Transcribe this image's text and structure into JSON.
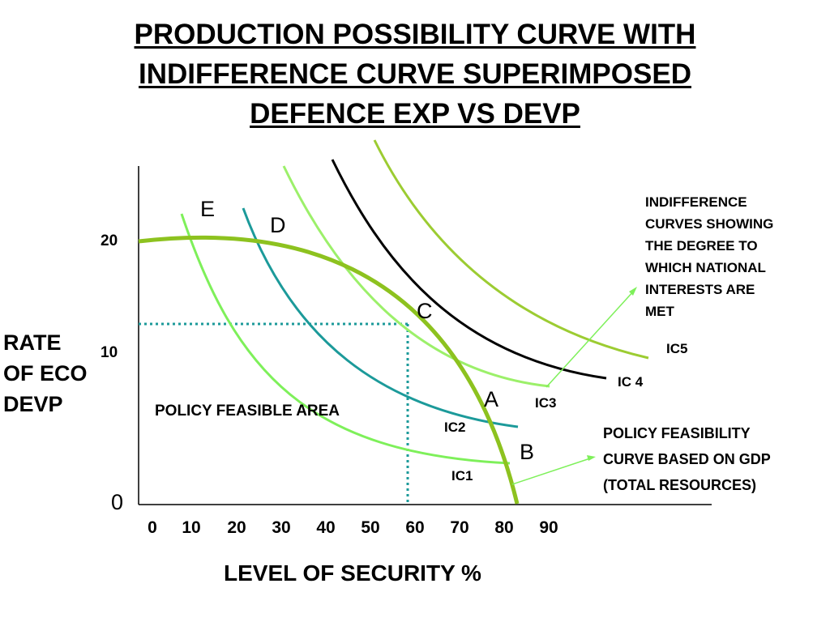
{
  "title": {
    "line1": "PRODUCTION POSSIBILITY CURVE WITH",
    "line2": "INDIFFERENCE CURVE SUPERIMPOSED",
    "line3": "DEFENCE EXP VS DEVP"
  },
  "y_axis": {
    "label_lines": [
      "RATE",
      "OF ECO",
      "DEVP"
    ],
    "ticks": [
      "20",
      "10",
      "0"
    ]
  },
  "x_axis": {
    "ticks": [
      "0",
      "10",
      "20",
      "30",
      "40",
      "50",
      "60",
      "70",
      "80",
      "90"
    ],
    "label": "LEVEL OF SECURITY %"
  },
  "points": [
    "E",
    "D",
    "C",
    "A",
    "B"
  ],
  "curves": {
    "ic_labels": [
      "IC1",
      "IC2",
      "IC3",
      "IC 4",
      "IC5"
    ],
    "colors": {
      "ppc": "#8dc21f",
      "ic1": "#7ef05a",
      "ic2": "#1c9a9a",
      "ic3": "#9cf06a",
      "ic4": "#000000",
      "ic5": "#9ccc32",
      "guide": "#1c9a9a",
      "arrow": "#7ef05a"
    }
  },
  "area_label": "POLICY FEASIBLE AREA",
  "annotation_ic": [
    "INDIFFERENCE",
    "CURVES SHOWING",
    "THE DEGREE TO",
    "WHICH NATIONAL",
    "INTERESTS ARE",
    "MET"
  ],
  "annotation_ppc": [
    "POLICY FEASIBILITY",
    "CURVE BASED ON GDP",
    "(TOTAL RESOURCES)"
  ]
}
